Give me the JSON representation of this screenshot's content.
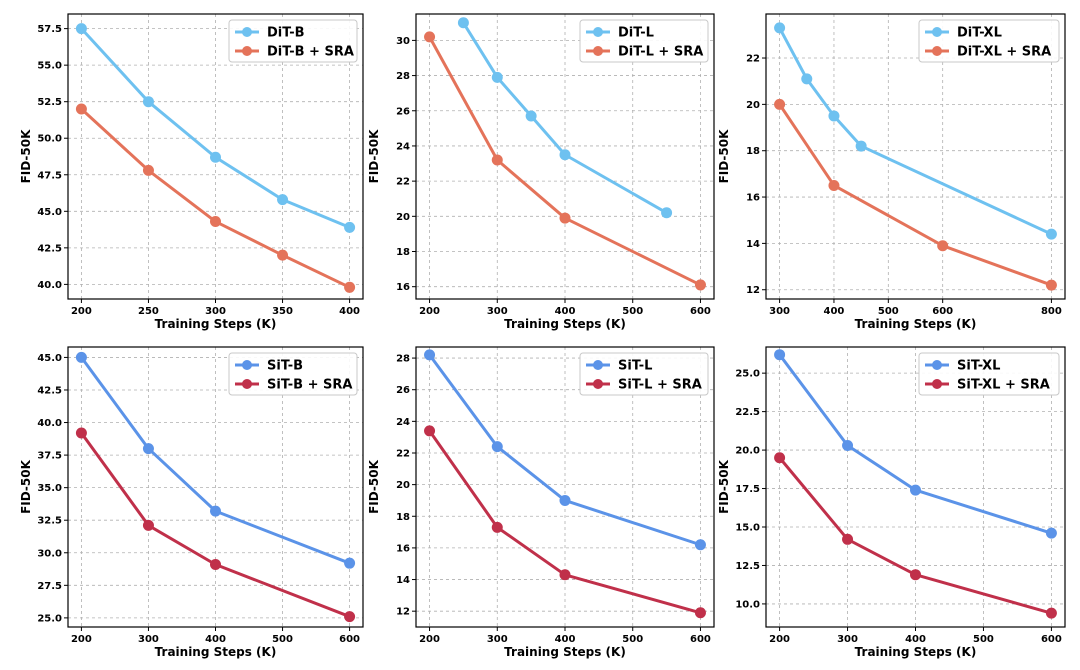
{
  "chart_data": [
    {
      "type": "line",
      "xlabel": "Training Steps (K)",
      "ylabel": "FID-50K",
      "xlim": [
        190,
        410
      ],
      "ylim": [
        39.0,
        58.5
      ],
      "xticks": [
        200,
        250,
        300,
        350,
        400
      ],
      "xtick_labels": [
        "200",
        "250",
        "300",
        "350",
        "400"
      ],
      "yticks": [
        40.0,
        42.5,
        45.0,
        47.5,
        50.0,
        52.5,
        55.0,
        57.5
      ],
      "ytick_labels": [
        "40.0",
        "42.5",
        "45.0",
        "47.5",
        "50.0",
        "52.5",
        "55.0",
        "57.5"
      ],
      "grid": true,
      "legend": "top-right",
      "series": [
        {
          "name": "DiT-B",
          "color": "#6EC1F0",
          "x": [
            200,
            250,
            300,
            350,
            400
          ],
          "y": [
            57.5,
            52.5,
            48.7,
            45.8,
            43.9
          ]
        },
        {
          "name": "DiT-B + SRA",
          "color": "#E4735A",
          "x": [
            200,
            250,
            300,
            350,
            400
          ],
          "y": [
            52.0,
            47.8,
            44.3,
            42.0,
            39.8
          ]
        }
      ]
    },
    {
      "type": "line",
      "xlabel": "Training Steps (K)",
      "ylabel": "FID-50K",
      "xlim": [
        180,
        620
      ],
      "ylim": [
        15.3,
        31.5
      ],
      "xticks": [
        200,
        300,
        400,
        500,
        600
      ],
      "xtick_labels": [
        "200",
        "300",
        "400",
        "500",
        "600"
      ],
      "yticks": [
        16,
        18,
        20,
        22,
        24,
        26,
        28,
        30
      ],
      "ytick_labels": [
        "16",
        "18",
        "20",
        "22",
        "24",
        "26",
        "28",
        "30"
      ],
      "grid": true,
      "legend": "top-right",
      "series": [
        {
          "name": "DiT-L",
          "color": "#6EC1F0",
          "x": [
            250,
            300,
            350,
            400,
            550
          ],
          "y": [
            31.0,
            27.9,
            25.7,
            23.5,
            20.2
          ]
        },
        {
          "name": "DiT-L + SRA",
          "color": "#E4735A",
          "x": [
            200,
            300,
            400,
            600
          ],
          "y": [
            30.2,
            23.2,
            19.9,
            16.1
          ]
        }
      ]
    },
    {
      "type": "line",
      "xlabel": "Training Steps (K)",
      "ylabel": "FID-50K",
      "xlim": [
        275,
        825
      ],
      "ylim": [
        11.6,
        23.9
      ],
      "xticks": [
        300,
        400,
        500,
        600,
        800
      ],
      "xtick_labels": [
        "300",
        "400",
        "500",
        "600",
        "800"
      ],
      "yticks": [
        12,
        14,
        16,
        18,
        20,
        22
      ],
      "ytick_labels": [
        "12",
        "14",
        "16",
        "18",
        "20",
        "22"
      ],
      "grid": true,
      "legend": "top-right",
      "series": [
        {
          "name": "DiT-XL",
          "color": "#6EC1F0",
          "x": [
            300,
            350,
            400,
            450,
            800
          ],
          "y": [
            23.3,
            21.1,
            19.5,
            18.2,
            14.4
          ]
        },
        {
          "name": "DiT-XL + SRA",
          "color": "#E4735A",
          "x": [
            300,
            400,
            600,
            800
          ],
          "y": [
            20.0,
            16.5,
            13.9,
            12.2
          ]
        }
      ]
    },
    {
      "type": "line",
      "xlabel": "Training Steps (K)",
      "ylabel": "FID-50K",
      "xlim": [
        180,
        620
      ],
      "ylim": [
        24.3,
        45.8
      ],
      "xticks": [
        200,
        300,
        400,
        500,
        600
      ],
      "xtick_labels": [
        "200",
        "300",
        "400",
        "500",
        "600"
      ],
      "yticks": [
        25.0,
        27.5,
        30.0,
        32.5,
        35.0,
        37.5,
        40.0,
        42.5,
        45.0
      ],
      "ytick_labels": [
        "25.0",
        "27.5",
        "30.0",
        "32.5",
        "35.0",
        "37.5",
        "40.0",
        "42.5",
        "45.0"
      ],
      "grid": true,
      "legend": "top-right",
      "series": [
        {
          "name": "SiT-B",
          "color": "#5B93E8",
          "x": [
            200,
            300,
            400,
            600
          ],
          "y": [
            45.0,
            38.0,
            33.2,
            29.2
          ]
        },
        {
          "name": "SiT-B + SRA",
          "color": "#C0304A",
          "x": [
            200,
            300,
            400,
            600
          ],
          "y": [
            39.2,
            32.1,
            29.1,
            25.1
          ]
        }
      ]
    },
    {
      "type": "line",
      "xlabel": "Training Steps (K)",
      "ylabel": "FID-50K",
      "xlim": [
        180,
        620
      ],
      "ylim": [
        11.0,
        28.7
      ],
      "xticks": [
        200,
        300,
        400,
        500,
        600
      ],
      "xtick_labels": [
        "200",
        "300",
        "400",
        "500",
        "600"
      ],
      "yticks": [
        12,
        14,
        16,
        18,
        20,
        22,
        24,
        26,
        28
      ],
      "ytick_labels": [
        "12",
        "14",
        "16",
        "18",
        "20",
        "22",
        "24",
        "26",
        "28"
      ],
      "grid": true,
      "legend": "top-right",
      "series": [
        {
          "name": "SiT-L",
          "color": "#5B93E8",
          "x": [
            200,
            300,
            400,
            600
          ],
          "y": [
            28.2,
            22.4,
            19.0,
            16.2
          ]
        },
        {
          "name": "SiT-L + SRA",
          "color": "#C0304A",
          "x": [
            200,
            300,
            400,
            600
          ],
          "y": [
            23.4,
            17.3,
            14.3,
            11.9
          ]
        }
      ]
    },
    {
      "type": "line",
      "xlabel": "Training Steps (K)",
      "ylabel": "FID-50K",
      "xlim": [
        180,
        620
      ],
      "ylim": [
        8.5,
        26.7
      ],
      "xticks": [
        200,
        300,
        400,
        500,
        600
      ],
      "xtick_labels": [
        "200",
        "300",
        "400",
        "500",
        "600"
      ],
      "yticks": [
        10.0,
        12.5,
        15.0,
        17.5,
        20.0,
        22.5,
        25.0
      ],
      "ytick_labels": [
        "10.0",
        "12.5",
        "15.0",
        "17.5",
        "20.0",
        "22.5",
        "25.0"
      ],
      "grid": true,
      "legend": "top-right",
      "series": [
        {
          "name": "SiT-XL",
          "color": "#5B93E8",
          "x": [
            200,
            300,
            400,
            600
          ],
          "y": [
            26.2,
            20.3,
            17.4,
            14.6
          ]
        },
        {
          "name": "SiT-XL + SRA",
          "color": "#C0304A",
          "x": [
            200,
            300,
            400,
            600
          ],
          "y": [
            19.5,
            14.2,
            11.9,
            9.4
          ]
        }
      ]
    }
  ]
}
